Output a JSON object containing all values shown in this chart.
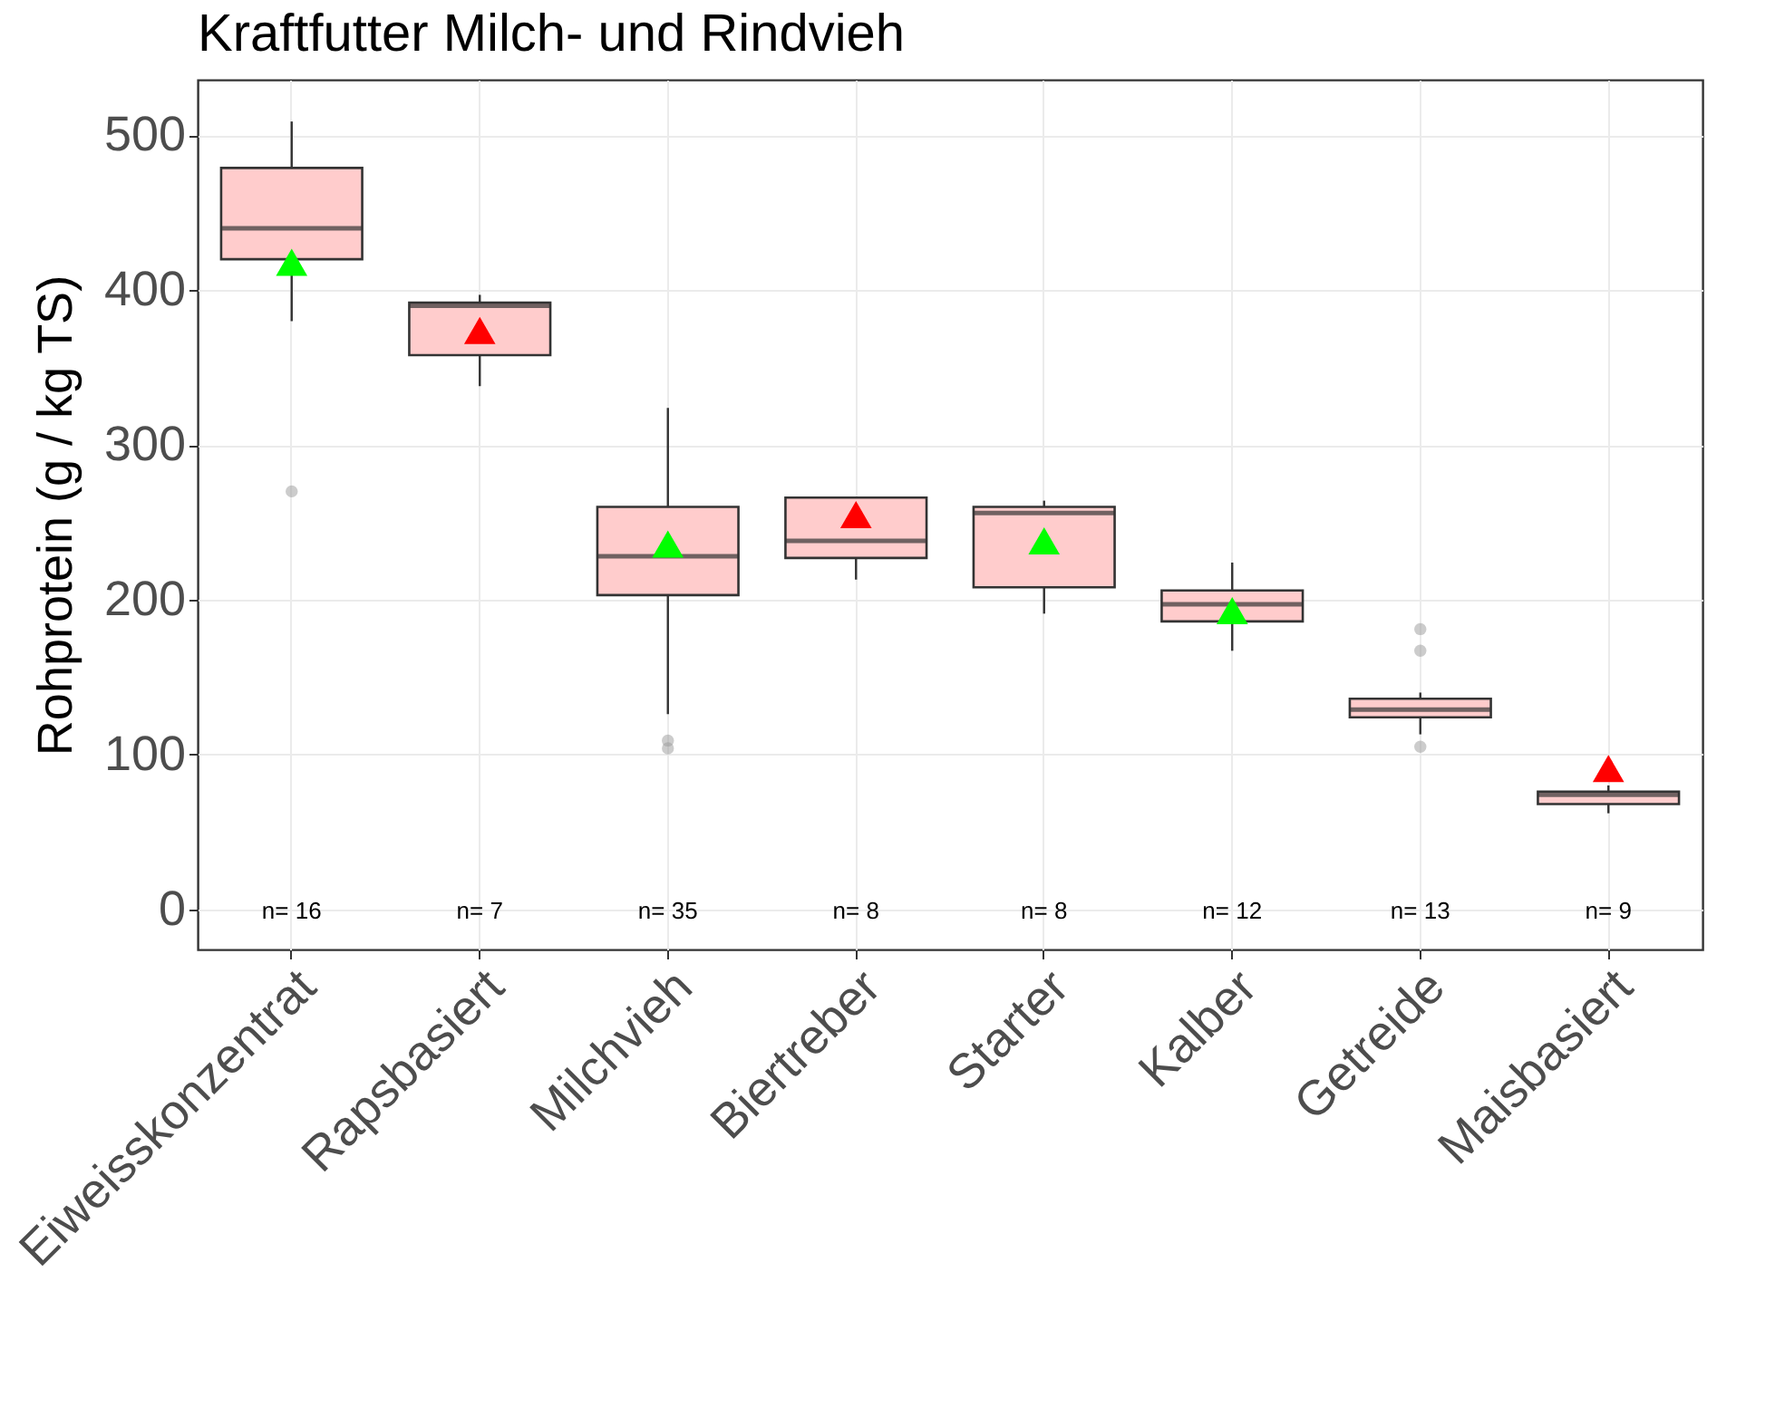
{
  "chart_data": {
    "type": "box",
    "title": "Kraftfutter Milch- und Rindvieh",
    "ylabel": "Rohprotein (g / kg TS)",
    "categories": [
      "Eiweisskonzentrat",
      "Rapsbasiert",
      "Milchvieh",
      "Biertreber",
      "Starter",
      "Kalber",
      "Getreide",
      "Maisbasiert"
    ],
    "series": [
      {
        "color": "#ffcccc",
        "boxes": [
          {
            "low": 380,
            "q1": 420,
            "median": 440,
            "q3": 479,
            "high": 509,
            "outliers": [
              270
            ]
          },
          {
            "low": 338,
            "q1": 358,
            "median": 390,
            "q3": 392,
            "high": 397
          },
          {
            "low": 126,
            "q1": 203,
            "median": 228,
            "q3": 260,
            "high": 324,
            "outliers": [
              109,
              104
            ]
          },
          {
            "low": 213,
            "q1": 227,
            "median": 238,
            "q3": 266,
            "high": 266
          },
          {
            "low": 191,
            "q1": 208,
            "median": 256,
            "q3": 260,
            "high": 264
          },
          {
            "low": 167,
            "q1": 186,
            "median": 197,
            "q3": 206,
            "high": 224
          },
          {
            "low": 113,
            "q1": 124,
            "median": 129,
            "q3": 136,
            "high": 140,
            "outliers": [
              181,
              167,
              105
            ]
          },
          {
            "low": 62,
            "q1": 68,
            "median": 74,
            "q3": 76,
            "high": 80
          }
        ]
      },
      {
        "type": "scatter",
        "marker": "triangle",
        "x": [
          "Eiweisskonzentrat",
          "Rapsbasiert",
          "Milchvieh",
          "Biertreber",
          "Starter",
          "Kalber",
          "Maisbasiert"
        ],
        "values": [
          418,
          374,
          236,
          255,
          238,
          193,
          91
        ],
        "colors": [
          "#00ff00",
          "#ff0000",
          "#00ff00",
          "#ff0000",
          "#00ff00",
          "#00ff00",
          "#ff0000"
        ]
      }
    ],
    "annotations": [
      "n= 16",
      "n= 7",
      "n= 35",
      "n= 8",
      "n= 8",
      "n= 12",
      "n= 13",
      "n= 9"
    ],
    "ylim": [
      -26,
      536
    ],
    "yticks": [
      0,
      100,
      200,
      300,
      400,
      500
    ],
    "grid": true
  }
}
